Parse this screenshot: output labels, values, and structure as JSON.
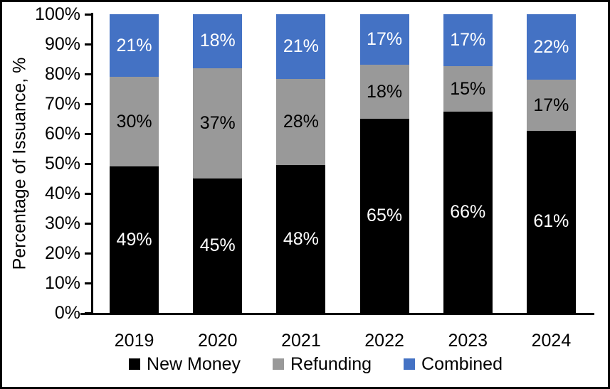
{
  "chart_data": {
    "type": "bar",
    "variant": "stacked-100",
    "title": "",
    "xlabel": "",
    "ylabel": "Percentage of Issuance, %",
    "ylim": [
      0,
      100
    ],
    "y_ticks": [
      "0%",
      "10%",
      "20%",
      "30%",
      "40%",
      "50%",
      "60%",
      "70%",
      "80%",
      "90%",
      "100%"
    ],
    "grid": false,
    "legend_position": "bottom",
    "categories": [
      "2019",
      "2020",
      "2021",
      "2022",
      "2023",
      "2024"
    ],
    "series": [
      {
        "name": "New Money",
        "color": "#000000",
        "label_color": "#ffffff",
        "values": [
          49,
          45,
          48,
          65,
          66,
          61
        ]
      },
      {
        "name": "Refunding",
        "color": "#999999",
        "label_color": "#000000",
        "values": [
          30,
          37,
          28,
          18,
          15,
          17
        ]
      },
      {
        "name": "Combined",
        "color": "#4472C4",
        "label_color": "#ffffff",
        "values": [
          21,
          18,
          21,
          17,
          17,
          22
        ]
      }
    ],
    "data_label_suffix": "%"
  },
  "colors": {
    "axis": "#000000",
    "background": "#ffffff",
    "border": "#000000",
    "new_money": "#000000",
    "refunding": "#999999",
    "combined": "#4472C4"
  }
}
